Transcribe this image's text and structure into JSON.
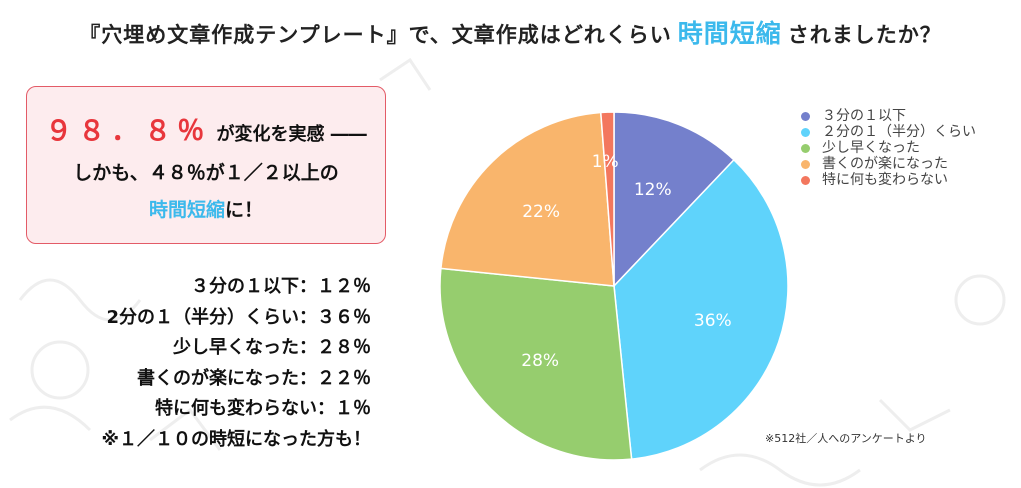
{
  "header": {
    "title_prefix": "『穴埋め文章作成テンプレート』で、文章作成はどれくらい",
    "title_highlight": "時間短縮",
    "title_suffix": "されましたか？"
  },
  "callout": {
    "percent": "９８．８％",
    "line1_rest": "が変化を実感 ――",
    "line2": "しかも、４８％が１／２以上の",
    "highlight": "時間短縮",
    "line3_rest": "に！"
  },
  "breakdown": [
    "３分の１以下：１２％",
    "2分の１（半分）くらい：３６％",
    "少し早くなった：２８％",
    "書くのが楽になった：２２％",
    "特に何も変わらない：１％",
    "※１／１０の時短になった方も！"
  ],
  "source_note": "※512社／人へのアンケートより",
  "colors": {
    "accent_blue": "#3cb9ec",
    "accent_red": "#e8363c",
    "callout_bg": "#fdecee",
    "callout_border": "#e35b67"
  },
  "chart_data": {
    "type": "pie",
    "slices": [
      {
        "label": "３分の１以下",
        "value": 12,
        "display": "12%",
        "color": "#7480cc"
      },
      {
        "label": "２分の１（半分）くらい",
        "value": 36,
        "display": "36%",
        "color": "#5fd3fb"
      },
      {
        "label": "少し早くなった",
        "value": 28,
        "display": "28%",
        "color": "#96cd6e"
      },
      {
        "label": "書くのが楽になった",
        "value": 22,
        "display": "22%",
        "color": "#f9b56c"
      },
      {
        "label": "特に何も変わらない",
        "value": 1.2,
        "display": "1%",
        "color": "#f3775e"
      }
    ],
    "legend_position": "top-right"
  }
}
